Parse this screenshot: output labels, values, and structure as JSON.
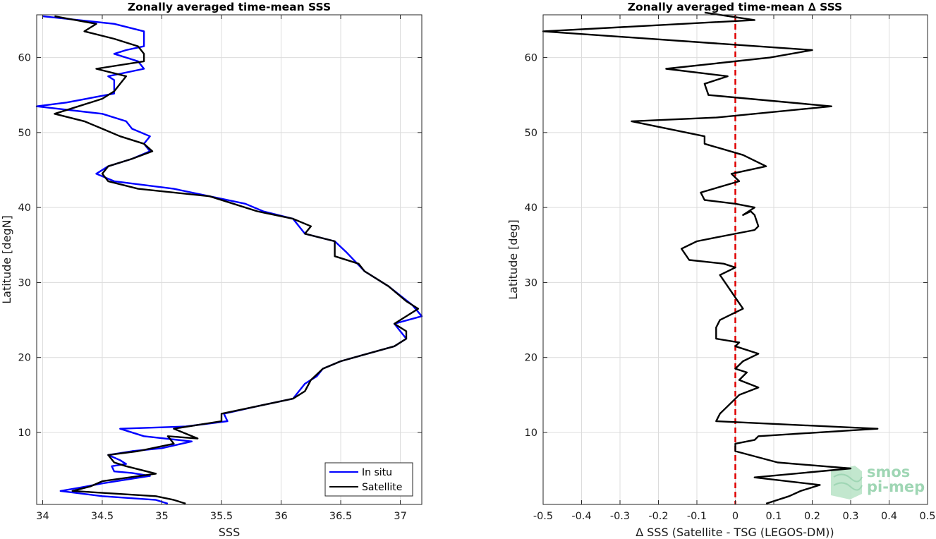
{
  "chart_data": [
    {
      "type": "line",
      "title": "Zonally averaged time-mean SSS",
      "xlabel": "SSS",
      "ylabel": "Latitude [degN]",
      "xlim": [
        33.95,
        37.18
      ],
      "ylim": [
        0.4,
        65.7
      ],
      "xticks": [
        34,
        34.5,
        35,
        35.5,
        36,
        36.5,
        37
      ],
      "xtick_labels": [
        "34",
        "34.5",
        "35",
        "35.5",
        "36",
        "36.5",
        "37"
      ],
      "yticks": [
        10,
        20,
        30,
        40,
        50,
        60
      ],
      "ytick_labels": [
        "10",
        "20",
        "30",
        "40",
        "50",
        "60"
      ],
      "grid": true,
      "legend_position": "bottom-right",
      "series": [
        {
          "name": "In situ",
          "color": "#0000ff",
          "points": [
            [
              35.05,
              0.5
            ],
            [
              34.95,
              1.0
            ],
            [
              34.5,
              1.5
            ],
            [
              34.15,
              2.2
            ],
            [
              34.3,
              2.6
            ],
            [
              34.5,
              3.2
            ],
            [
              34.9,
              4.2
            ],
            [
              34.75,
              4.6
            ],
            [
              34.6,
              4.8
            ],
            [
              34.58,
              5.5
            ],
            [
              34.7,
              5.8
            ],
            [
              34.65,
              6.3
            ],
            [
              34.55,
              7.0
            ],
            [
              34.75,
              7.5
            ],
            [
              35.0,
              7.9
            ],
            [
              35.25,
              8.8
            ],
            [
              34.85,
              9.5
            ],
            [
              34.65,
              10.5
            ],
            [
              35.2,
              10.8
            ],
            [
              35.55,
              11.5
            ],
            [
              35.52,
              12.5
            ],
            [
              35.8,
              13.5
            ],
            [
              36.1,
              14.5
            ],
            [
              36.2,
              16.5
            ],
            [
              36.3,
              17.5
            ],
            [
              36.35,
              18.5
            ],
            [
              36.5,
              19.5
            ],
            [
              36.95,
              21.5
            ],
            [
              37.05,
              22.5
            ],
            [
              36.95,
              24.5
            ],
            [
              37.18,
              25.5
            ],
            [
              37.1,
              27.0
            ],
            [
              36.9,
              29.5
            ],
            [
              36.7,
              31.5
            ],
            [
              36.55,
              34.0
            ],
            [
              36.45,
              35.5
            ],
            [
              36.2,
              36.5
            ],
            [
              36.1,
              38.5
            ],
            [
              35.85,
              39.5
            ],
            [
              35.7,
              40.5
            ],
            [
              35.4,
              41.5
            ],
            [
              35.1,
              42.5
            ],
            [
              34.6,
              43.5
            ],
            [
              34.45,
              44.5
            ],
            [
              34.55,
              45.5
            ],
            [
              34.75,
              46.5
            ],
            [
              34.9,
              47.5
            ],
            [
              34.85,
              48.5
            ],
            [
              34.9,
              49.5
            ],
            [
              34.75,
              50.5
            ],
            [
              34.7,
              51.5
            ],
            [
              34.5,
              52.5
            ],
            [
              33.95,
              53.5
            ],
            [
              34.2,
              54.0
            ],
            [
              34.6,
              55.2
            ],
            [
              34.6,
              56.5
            ],
            [
              34.6,
              57.0
            ],
            [
              34.55,
              57.5
            ],
            [
              34.85,
              58.5
            ],
            [
              34.8,
              59.5
            ],
            [
              34.6,
              60.5
            ],
            [
              34.7,
              61.0
            ],
            [
              34.85,
              61.5
            ],
            [
              34.85,
              63.5
            ],
            [
              34.6,
              64.5
            ],
            [
              34.0,
              65.5
            ]
          ]
        },
        {
          "name": "Satellite",
          "color": "#000000",
          "points": [
            [
              35.2,
              0.5
            ],
            [
              35.1,
              1.0
            ],
            [
              34.95,
              1.5
            ],
            [
              34.25,
              2.2
            ],
            [
              34.4,
              2.8
            ],
            [
              34.5,
              3.5
            ],
            [
              34.95,
              4.5
            ],
            [
              34.7,
              5.5
            ],
            [
              34.6,
              6.0
            ],
            [
              34.55,
              7.0
            ],
            [
              34.8,
              7.5
            ],
            [
              35.1,
              8.5
            ],
            [
              35.05,
              9.5
            ],
            [
              35.3,
              9.2
            ],
            [
              35.1,
              10.5
            ],
            [
              35.5,
              11.5
            ],
            [
              35.5,
              12.5
            ],
            [
              35.8,
              13.5
            ],
            [
              36.1,
              14.5
            ],
            [
              36.2,
              15.5
            ],
            [
              36.25,
              17.0
            ],
            [
              36.35,
              18.5
            ],
            [
              36.5,
              19.5
            ],
            [
              36.95,
              21.5
            ],
            [
              37.05,
              22.5
            ],
            [
              37.05,
              23.5
            ],
            [
              36.95,
              24.5
            ],
            [
              37.15,
              26.5
            ],
            [
              37.05,
              27.5
            ],
            [
              36.9,
              29.5
            ],
            [
              36.7,
              31.5
            ],
            [
              36.65,
              32.5
            ],
            [
              36.45,
              33.5
            ],
            [
              36.45,
              35.5
            ],
            [
              36.2,
              36.5
            ],
            [
              36.25,
              37.5
            ],
            [
              36.1,
              38.5
            ],
            [
              35.8,
              39.5
            ],
            [
              35.6,
              40.5
            ],
            [
              35.4,
              41.5
            ],
            [
              34.8,
              42.5
            ],
            [
              34.55,
              43.5
            ],
            [
              34.5,
              44.5
            ],
            [
              34.55,
              45.5
            ],
            [
              34.75,
              46.5
            ],
            [
              34.92,
              47.5
            ],
            [
              34.85,
              48.5
            ],
            [
              34.65,
              49.5
            ],
            [
              34.5,
              50.5
            ],
            [
              34.35,
              51.5
            ],
            [
              34.1,
              52.5
            ],
            [
              34.3,
              53.5
            ],
            [
              34.5,
              54.5
            ],
            [
              34.6,
              55.5
            ],
            [
              34.65,
              56.5
            ],
            [
              34.7,
              57.5
            ],
            [
              34.45,
              58.5
            ],
            [
              34.85,
              59.5
            ],
            [
              34.85,
              60.5
            ],
            [
              34.8,
              61.5
            ],
            [
              34.6,
              62.5
            ],
            [
              34.35,
              63.5
            ],
            [
              34.45,
              64.5
            ],
            [
              34.1,
              65.5
            ]
          ]
        }
      ]
    },
    {
      "type": "line",
      "title": "Zonally averaged time-mean ∆ SSS",
      "xlabel": "∆ SSS (Satellite - TSG (LEGOS-DM))",
      "ylabel": "Latitude [deg]",
      "xlim": [
        -0.5,
        0.5
      ],
      "ylim": [
        0.4,
        65.7
      ],
      "xticks": [
        -0.5,
        -0.4,
        -0.3,
        -0.2,
        -0.1,
        0,
        0.1,
        0.2,
        0.3,
        0.4,
        0.5
      ],
      "xtick_labels": [
        "-0.5",
        "-0.4",
        "-0.3",
        "-0.2",
        "-0.1",
        "0",
        "0.1",
        "0.2",
        "0.3",
        "0.4",
        "0.5"
      ],
      "yticks": [
        10,
        20,
        30,
        40,
        50,
        60
      ],
      "ytick_labels": [
        "10",
        "20",
        "30",
        "40",
        "50",
        "60"
      ],
      "grid": true,
      "reference_line": {
        "x": 0,
        "color": "#e00000",
        "style": "dashed"
      },
      "series": [
        {
          "color": "#000000",
          "points": [
            [
              0.08,
              0.5
            ],
            [
              0.14,
              1.5
            ],
            [
              0.17,
              2.2
            ],
            [
              0.22,
              3.0
            ],
            [
              0.05,
              4.0
            ],
            [
              0.3,
              5.2
            ],
            [
              0.11,
              6.0
            ],
            [
              0.0,
              7.5
            ],
            [
              0.0,
              8.5
            ],
            [
              0.05,
              9.0
            ],
            [
              0.06,
              9.5
            ],
            [
              0.37,
              10.5
            ],
            [
              -0.05,
              11.5
            ],
            [
              -0.04,
              12.5
            ],
            [
              -0.02,
              13.5
            ],
            [
              0.01,
              15.0
            ],
            [
              0.06,
              16.0
            ],
            [
              0.01,
              17.0
            ],
            [
              0.03,
              18.0
            ],
            [
              0.0,
              18.5
            ],
            [
              0.02,
              19.5
            ],
            [
              0.06,
              20.5
            ],
            [
              0.0,
              21.5
            ],
            [
              0.01,
              22.0
            ],
            [
              -0.05,
              22.5
            ],
            [
              -0.05,
              24.0
            ],
            [
              -0.04,
              25.0
            ],
            [
              -0.02,
              25.5
            ],
            [
              0.02,
              26.5
            ],
            [
              0.0,
              28.0
            ],
            [
              -0.02,
              29.5
            ],
            [
              -0.04,
              31.0
            ],
            [
              0.0,
              32.0
            ],
            [
              -0.03,
              32.5
            ],
            [
              -0.12,
              33.0
            ],
            [
              -0.14,
              34.5
            ],
            [
              -0.1,
              35.5
            ],
            [
              -0.05,
              36.0
            ],
            [
              0.05,
              37.0
            ],
            [
              0.06,
              37.5
            ],
            [
              0.05,
              39.0
            ],
            [
              0.04,
              39.5
            ],
            [
              0.02,
              39.0
            ],
            [
              0.05,
              40.0
            ],
            [
              0.0,
              40.5
            ],
            [
              -0.08,
              41.0
            ],
            [
              -0.09,
              42.0
            ],
            [
              0.01,
              43.5
            ],
            [
              0.0,
              44.0
            ],
            [
              -0.01,
              44.5
            ],
            [
              0.08,
              45.5
            ],
            [
              0.02,
              47.0
            ],
            [
              -0.08,
              48.5
            ],
            [
              -0.08,
              49.5
            ],
            [
              -0.27,
              51.5
            ],
            [
              -0.05,
              52.0
            ],
            [
              0.25,
              53.5
            ],
            [
              -0.07,
              55.0
            ],
            [
              -0.08,
              56.5
            ],
            [
              -0.02,
              57.5
            ],
            [
              -0.18,
              58.5
            ],
            [
              0.09,
              60.0
            ],
            [
              0.2,
              61.0
            ],
            [
              -0.5,
              63.5
            ],
            [
              0.05,
              65.0
            ],
            [
              -0.08,
              66.0
            ]
          ]
        }
      ]
    }
  ],
  "legend": {
    "items": [
      "In situ",
      "Satellite"
    ]
  },
  "watermark": {
    "line1": "smos",
    "line2": "pi-mep"
  }
}
